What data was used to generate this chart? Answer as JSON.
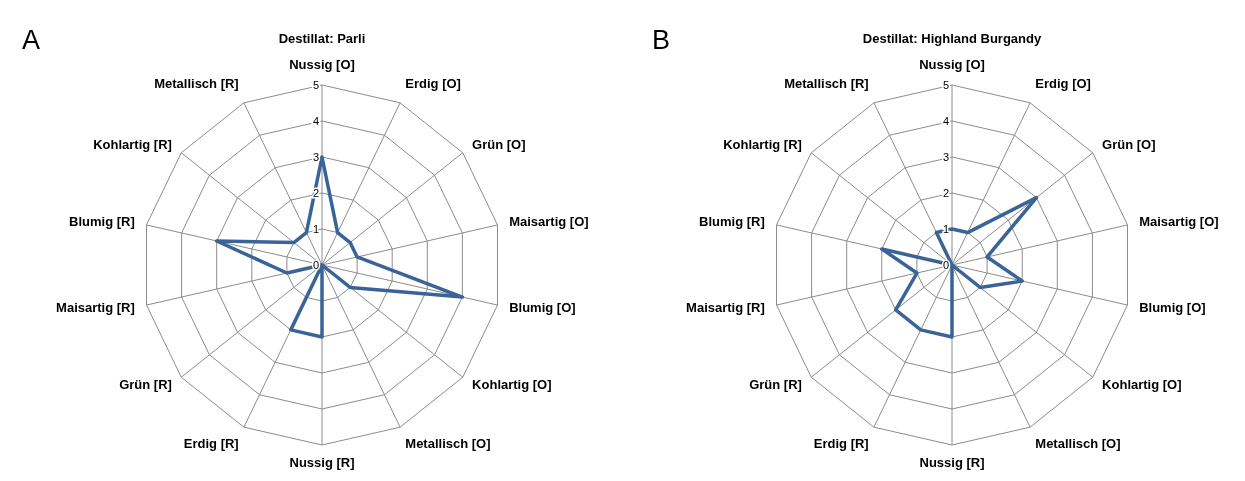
{
  "chart_data": [
    {
      "type": "radar",
      "title": "Destillat: Parli",
      "annotations": [
        "A"
      ],
      "categories": [
        "Nussig [O]",
        "Erdig [O]",
        "Grün [O]",
        "Maisartig [O]",
        "Blumig [O]",
        "Kohlartig [O]",
        "Metallisch [O]",
        "Nussig [R]",
        "Erdig [R]",
        "Grün [R]",
        "Maisartig [R]",
        "Blumig [R]",
        "Kohlartig [R]",
        "Metallisch [R]"
      ],
      "series": [
        {
          "color": "#3a6398",
          "values": [
            3,
            1,
            1,
            1,
            4,
            1,
            0,
            2,
            2,
            0,
            1,
            3,
            1,
            1
          ]
        }
      ],
      "ylim": [
        0,
        5
      ],
      "yticks": [
        0,
        1,
        2,
        3,
        4,
        5
      ],
      "grid": true
    },
    {
      "type": "radar",
      "title": "Destillat: Highland Burgandy",
      "annotations": [
        "B"
      ],
      "categories": [
        "Nussig [O]",
        "Erdig [O]",
        "Grün [O]",
        "Maisartig [O]",
        "Blumig [O]",
        "Kohlartig [O]",
        "Metallisch [O]",
        "Nussig [R]",
        "Erdig [R]",
        "Grün [R]",
        "Maisartig [R]",
        "Blumig [R]",
        "Kohlartig [R]",
        "Metallisch [R]"
      ],
      "series": [
        {
          "color": "#3a6398",
          "values": [
            1,
            1,
            3,
            1,
            2,
            1,
            0,
            2,
            2,
            2,
            1,
            2,
            0,
            1
          ]
        }
      ],
      "ylim": [
        0,
        5
      ],
      "yticks": [
        0,
        1,
        2,
        3,
        4,
        5
      ],
      "grid": true
    }
  ]
}
